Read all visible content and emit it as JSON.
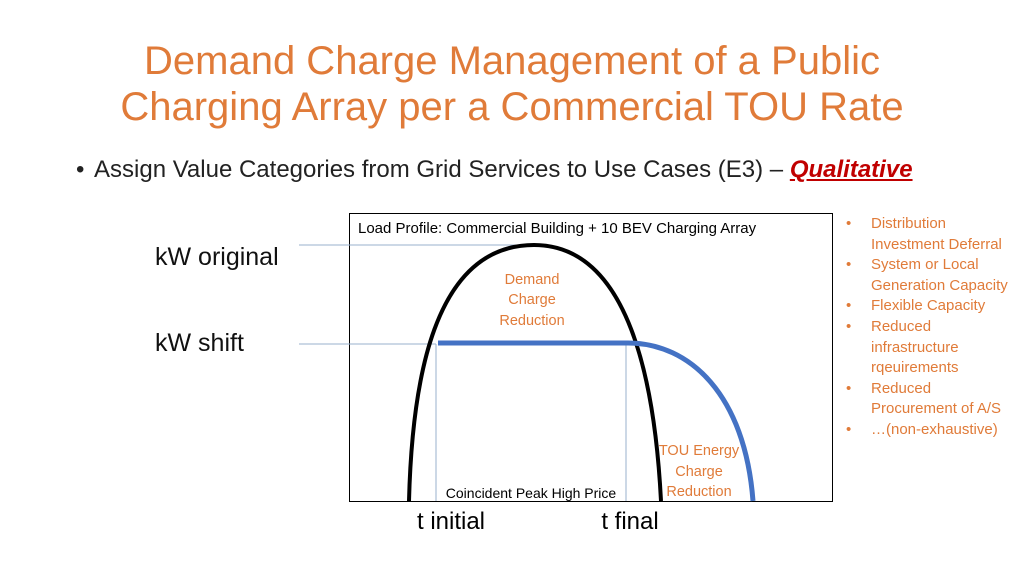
{
  "title": {
    "line1": "Demand Charge Management of a Public",
    "line2": "Charging Array per a Commercial TOU Rate"
  },
  "bullet": {
    "text": "Assign Value Categories from Grid Services to Use Cases (E3) – ",
    "emphasis": "Qualitative"
  },
  "diagram": {
    "box_title": "Load Profile: Commercial Building + 10 BEV Charging Array",
    "kw_original": "kW original",
    "kw_shift": "kW shift",
    "demand_reduction": [
      "Demand",
      "Charge",
      "Reduction"
    ],
    "tou_reduction": [
      "TOU Energy",
      "Charge",
      "Reduction"
    ],
    "coincident_peak": "Coincident Peak High Price",
    "t_initial": "t initial",
    "t_final": "t final"
  },
  "value_categories": [
    "Distribution Investment Deferral",
    "System or Local Generation Capacity",
    "Flexible Capacity",
    "Reduced infrastructure rqeuirements",
    "Reduced Procurement of A/S",
    "…(non-exhaustive)"
  ],
  "colors": {
    "accent": "#e07b39",
    "emphasis": "#c00000",
    "shift_curve": "#4472c4",
    "original_curve": "#000000"
  }
}
